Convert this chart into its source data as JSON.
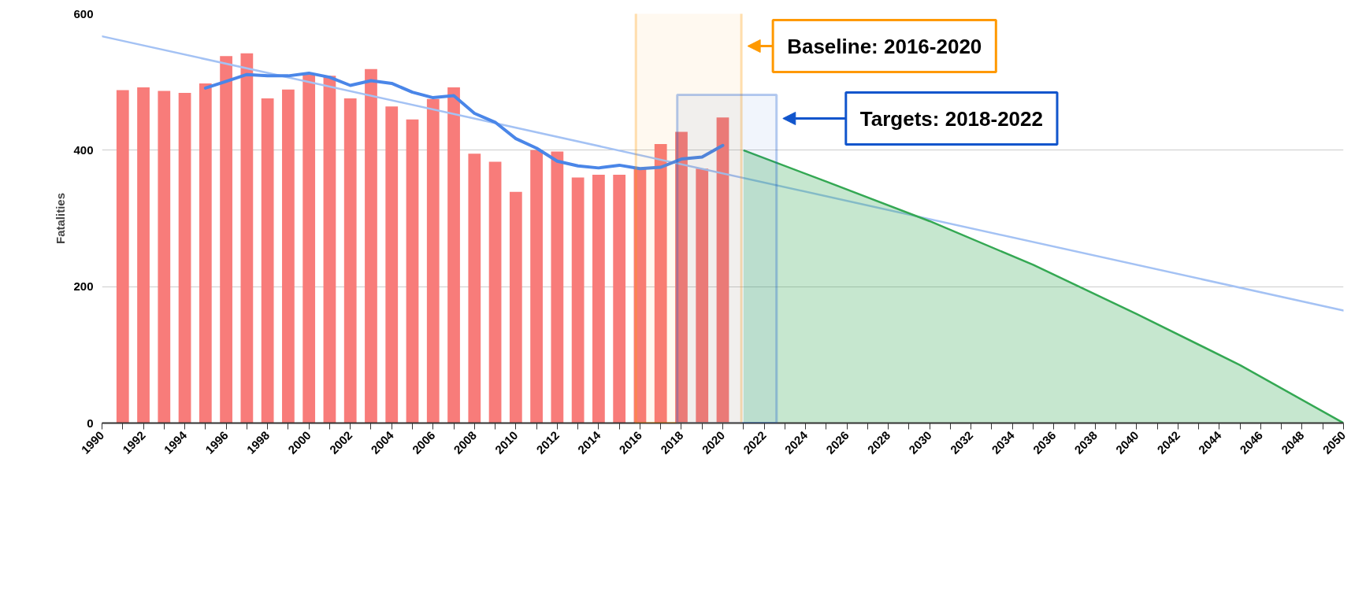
{
  "chart_data": {
    "type": "bar",
    "ylabel": "Fatalities",
    "xlim": [
      1990,
      2050
    ],
    "xticks": [
      1990,
      1992,
      1994,
      1996,
      1998,
      2000,
      2002,
      2004,
      2006,
      2008,
      2010,
      2012,
      2014,
      2016,
      2018,
      2020,
      2022,
      2024,
      2026,
      2028,
      2030,
      2032,
      2034,
      2036,
      2038,
      2040,
      2042,
      2044,
      2046,
      2048,
      2050
    ],
    "ylim": [
      0,
      600
    ],
    "yticks": [
      0,
      200,
      400,
      600
    ],
    "grid": "y",
    "series": [
      {
        "color": "#f87c7a",
        "x": [
          1991,
          1992,
          1993,
          1994,
          1995,
          1996,
          1997,
          1998,
          1999,
          2000,
          2001,
          2002,
          2003,
          2004,
          2005,
          2006,
          2007,
          2008,
          2009,
          2010,
          2011,
          2012,
          2013,
          2014,
          2015,
          2016,
          2017,
          2018,
          2019,
          2020
        ],
        "values": [
          488,
          492,
          487,
          484,
          498,
          538,
          542,
          476,
          489,
          512,
          509,
          476,
          519,
          464,
          445,
          475,
          492,
          395,
          383,
          339,
          400,
          398,
          360,
          364,
          364,
          372,
          409,
          427,
          373,
          448
        ]
      },
      {
        "type": "line",
        "color": "#a4c2f4",
        "x": [
          1990,
          2050
        ],
        "values": [
          567,
          165
        ]
      },
      {
        "type": "line",
        "color": "#4a86e8",
        "x": [
          1995,
          1996,
          1997,
          1998,
          1999,
          2000,
          2001,
          2002,
          2003,
          2004,
          2005,
          2006,
          2007,
          2008,
          2009,
          2010,
          2011,
          2012,
          2013,
          2014,
          2015,
          2016,
          2017,
          2018,
          2019,
          2020
        ],
        "values": [
          491,
          501,
          511,
          509,
          509,
          513,
          507,
          495,
          502,
          498,
          485,
          477,
          480,
          454,
          441,
          417,
          403,
          384,
          377,
          374,
          378,
          373,
          375,
          387,
          390,
          407
        ]
      },
      {
        "type": "area",
        "color": "#34a853",
        "x": [
          2021,
          2025,
          2030,
          2035,
          2040,
          2045,
          2050
        ],
        "values": [
          400,
          354,
          296,
          232,
          160,
          85,
          0
        ]
      }
    ],
    "bands": [
      {
        "axis": "x",
        "from": 2015.8,
        "to": 2020.9,
        "label": "Baseline: 2016-2020",
        "color": "#ff9900"
      },
      {
        "axis": "x",
        "from": 2017.8,
        "to": 2022.6,
        "label": "Targets: 2018-2022",
        "color": "#1155cc"
      }
    ]
  }
}
